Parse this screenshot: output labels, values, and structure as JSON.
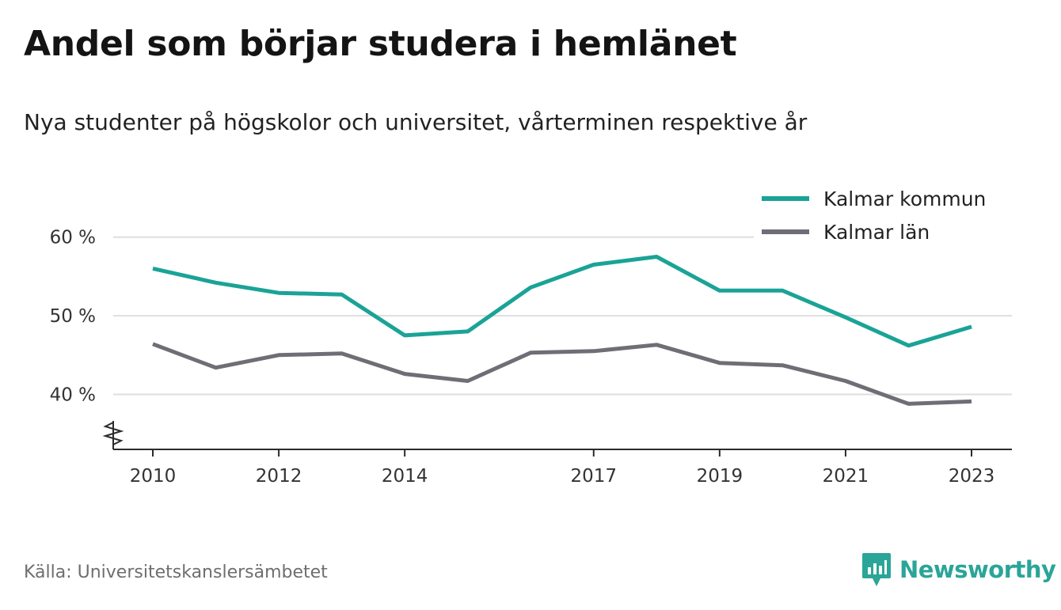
{
  "title": "Andel som börjar studera i hemlänet",
  "subtitle": "Nya studenter på högskolor och universitet, vårterminen respektive år",
  "source": "Källa: Universitetskanslersämbetet",
  "brand": {
    "name": "Newsworthy",
    "icon": "newsworthy-logo-icon",
    "color": "#2aa598"
  },
  "chart_data": {
    "type": "line",
    "x": [
      2010,
      2011,
      2012,
      2013,
      2014,
      2015,
      2016,
      2017,
      2018,
      2019,
      2020,
      2021,
      2022,
      2023
    ],
    "x_tick_values": [
      2010,
      2012,
      2014,
      2017,
      2019,
      2021,
      2023
    ],
    "x_tick_labels": [
      "2010",
      "2012",
      "2014",
      "2017",
      "2019",
      "2021",
      "2023"
    ],
    "y_tick_values": [
      40,
      50,
      60
    ],
    "y_tick_labels": [
      "40 %",
      "50 %",
      "60 %"
    ],
    "ylim": [
      33,
      65
    ],
    "y_axis_break": true,
    "grid": true,
    "legend_position": "top-right",
    "series": [
      {
        "name": "Kalmar kommun",
        "color": "#1aa396",
        "values": [
          56.0,
          54.2,
          52.9,
          52.7,
          47.5,
          48.0,
          53.6,
          56.5,
          57.5,
          53.2,
          53.2,
          49.8,
          46.2,
          48.6
        ]
      },
      {
        "name": "Kalmar län",
        "color": "#6f6e76",
        "values": [
          46.4,
          43.4,
          45.0,
          45.2,
          42.6,
          41.7,
          45.3,
          45.5,
          46.3,
          44.0,
          43.7,
          41.7,
          38.8,
          39.1
        ]
      }
    ]
  }
}
